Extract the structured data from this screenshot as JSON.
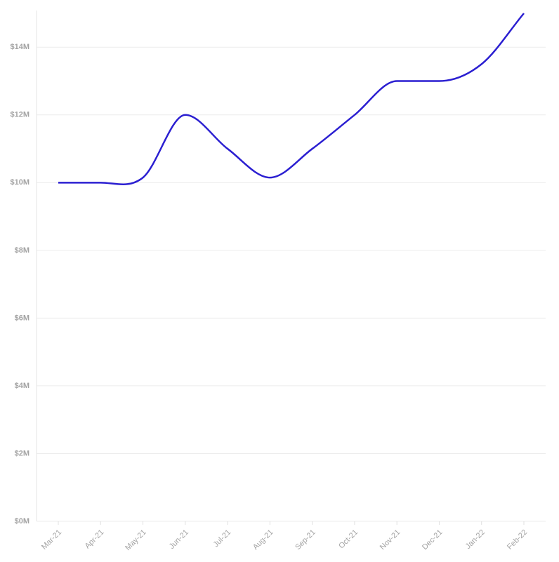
{
  "chart_data": {
    "type": "line",
    "categories": [
      "Mar-21",
      "Apr-21",
      "May-21",
      "Jun-21",
      "Jul-21",
      "Aug-21",
      "Sep-21",
      "Oct-21",
      "Nov-21",
      "Dec-21",
      "Jan-22",
      "Feb-22"
    ],
    "series": [
      {
        "color": "#2b1fd1",
        "values": [
          10,
          10,
          10.15,
          12,
          11,
          10.15,
          11,
          12,
          13,
          13,
          13.5,
          15
        ]
      }
    ],
    "ylim": [
      0,
      15
    ],
    "yticks": [
      {
        "value": 0,
        "label": "$0M"
      },
      {
        "value": 2,
        "label": "$2M"
      },
      {
        "value": 4,
        "label": "$4M"
      },
      {
        "value": 6,
        "label": "$6M"
      },
      {
        "value": 8,
        "label": "$8M"
      },
      {
        "value": 10,
        "label": "$10M"
      },
      {
        "value": 12,
        "label": "$12M"
      },
      {
        "value": 14,
        "label": "$14M"
      }
    ],
    "grid": true
  }
}
